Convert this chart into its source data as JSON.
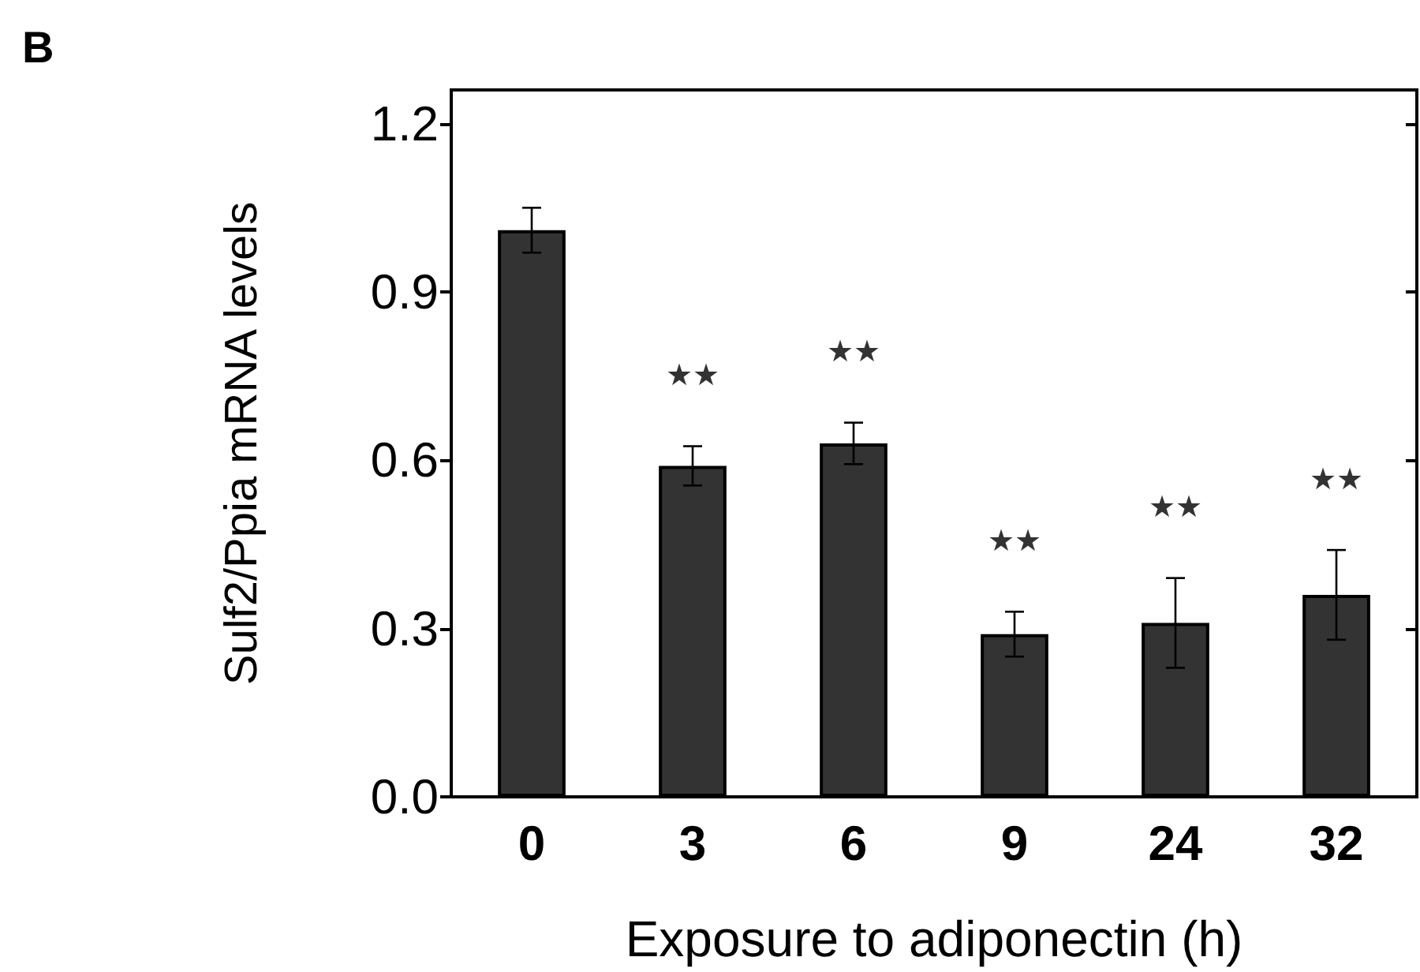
{
  "chart_data": {
    "type": "bar",
    "xlabel": "Exposure to adiponectin (h)",
    "ylabel": "Sulf2/Ppia mRNA levels",
    "categories": [
      "0",
      "3",
      "6",
      "9",
      "24",
      "32"
    ],
    "values": [
      1.01,
      0.59,
      0.63,
      0.29,
      0.31,
      0.36
    ],
    "errors": [
      0.04,
      0.035,
      0.037,
      0.04,
      0.08,
      0.08
    ],
    "color": "#333333",
    "ylim": [
      0,
      1.26
    ],
    "yticks": [
      {
        "value": 0,
        "label": "0.0"
      },
      {
        "value": 0.3,
        "label": "0.3"
      },
      {
        "value": 0.6,
        "label": "0.6"
      },
      {
        "value": 0.9,
        "label": "0.9"
      },
      {
        "value": 1.2,
        "label": "1.2"
      }
    ],
    "annotations": [
      "B",
      "★★",
      "★★",
      "★★",
      "★★",
      "★★"
    ],
    "grid": false
  }
}
